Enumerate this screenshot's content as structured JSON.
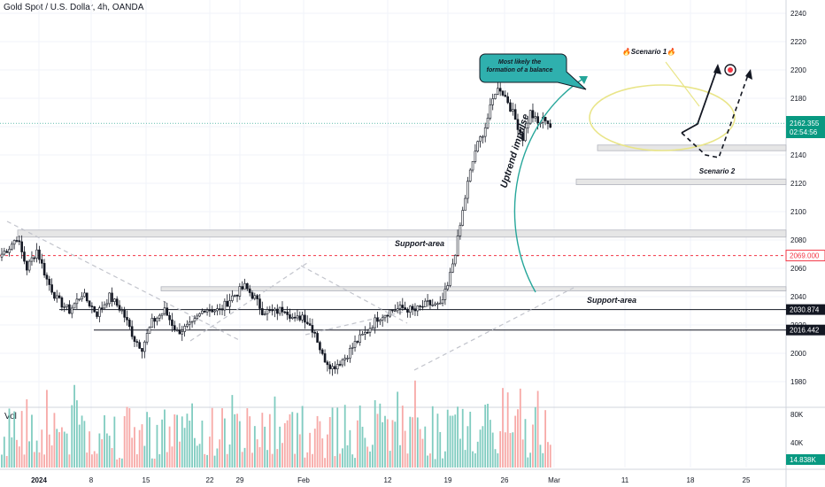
{
  "header": {
    "title": "Gold Spot / U.S. Dollar, 4h, OANDA"
  },
  "volume_label": "Vol",
  "colors": {
    "up": "#089981",
    "down": "#f23645",
    "vol_up": "#80ccc0",
    "vol_down": "#f7a9a7",
    "zone_fill": "#e6e6e6",
    "ellipse": "#e9e589",
    "arrow": "#26a69a"
  },
  "chart_data": {
    "type": "candlestick",
    "ylim": [
      1960,
      2240
    ],
    "y_ticks": [
      1980,
      2000,
      2020,
      2040,
      2060,
      2080,
      2100,
      2120,
      2140,
      2160,
      2180,
      2200,
      2220,
      2240
    ],
    "x_ticks": [
      "2024",
      "8",
      "15",
      "22",
      "29",
      "Feb",
      "12",
      "19",
      "26",
      "Mar",
      "11",
      "18",
      "25"
    ],
    "volume_ticks": [
      "80K",
      "40K"
    ],
    "last_price_badge": {
      "price": "2162.355",
      "countdown": "02:54:56"
    },
    "price_badges": [
      {
        "value": "2069.000",
        "color": "#f23645",
        "style": "outline"
      },
      {
        "value": "2030.874",
        "color": "#131722"
      },
      {
        "value": "2016.442",
        "color": "#131722"
      }
    ],
    "volume_badge": "14.838K",
    "candle_knots": [
      [
        0,
        2070
      ],
      [
        3,
        2075
      ],
      [
        6,
        2082
      ],
      [
        10,
        2060
      ],
      [
        14,
        2073
      ],
      [
        18,
        2052
      ],
      [
        22,
        2038
      ],
      [
        27,
        2030
      ],
      [
        32,
        2042
      ],
      [
        38,
        2028
      ],
      [
        43,
        2040
      ],
      [
        48,
        2030
      ],
      [
        53,
        2010
      ],
      [
        56,
        2004
      ],
      [
        60,
        2022
      ],
      [
        65,
        2030
      ],
      [
        70,
        2015
      ],
      [
        76,
        2020
      ],
      [
        81,
        2032
      ],
      [
        87,
        2030
      ],
      [
        92,
        2040
      ],
      [
        97,
        2047
      ],
      [
        101,
        2039
      ],
      [
        104,
        2030
      ],
      [
        109,
        2029
      ],
      [
        113,
        2032
      ],
      [
        117,
        2023
      ],
      [
        120,
        2027
      ],
      [
        125,
        2015
      ],
      [
        128,
        1998
      ],
      [
        132,
        1990
      ],
      [
        137,
        1997
      ],
      [
        141,
        2007
      ],
      [
        145,
        2014
      ],
      [
        150,
        2025
      ],
      [
        155,
        2030
      ],
      [
        160,
        2032
      ],
      [
        165,
        2030
      ],
      [
        170,
        2035
      ],
      [
        175,
        2033
      ],
      [
        178,
        2047
      ],
      [
        182,
        2080
      ],
      [
        186,
        2120
      ],
      [
        189,
        2143
      ],
      [
        193,
        2160
      ],
      [
        197,
        2185
      ],
      [
        199,
        2187
      ],
      [
        202,
        2178
      ],
      [
        205,
        2165
      ],
      [
        208,
        2152
      ],
      [
        211,
        2170
      ],
      [
        214,
        2162
      ],
      [
        217,
        2166
      ],
      [
        219,
        2160
      ]
    ],
    "zones": [
      {
        "y1": 2087,
        "y2": 2082,
        "label": "Support-area"
      },
      {
        "y1": 2047,
        "y2": 2044,
        "label": "Support-area"
      },
      {
        "y1": 2147,
        "y2": 2143
      },
      {
        "y1": 2123,
        "y2": 2119
      }
    ],
    "horizontal_lines": [
      2030.874,
      2016.442,
      2069.0,
      2162.355
    ],
    "annotations": {
      "scenario1": "🔥Scenario 1🔥",
      "scenario2": "Scenario 2",
      "impulse": "Uptrend impulse",
      "callout_line1": "Most likely the",
      "callout_line2": "formation of a balance"
    }
  }
}
